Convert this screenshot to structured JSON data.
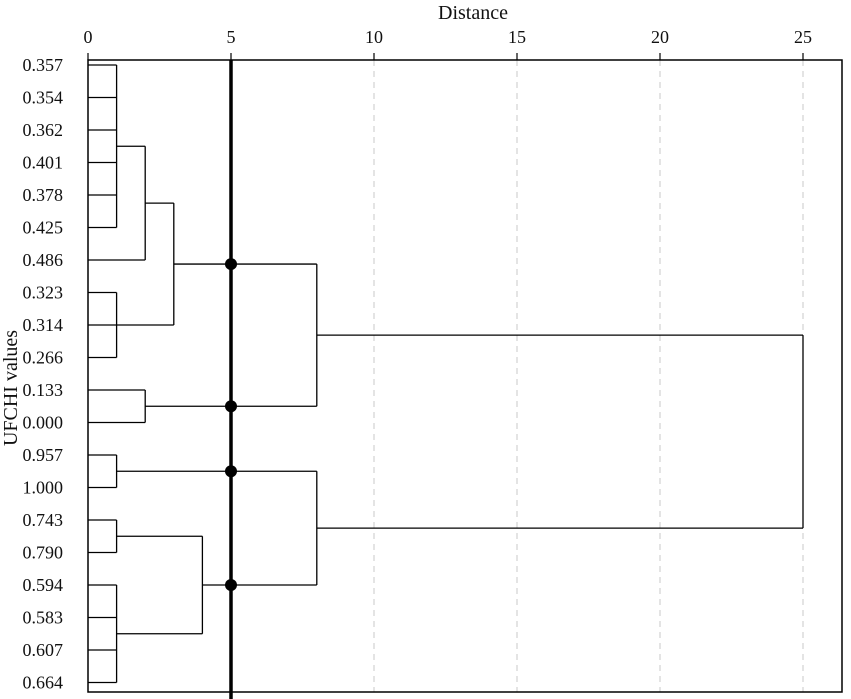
{
  "chart_data": {
    "type": "dendrogram",
    "title": "",
    "xlabel": "Distance",
    "ylabel": "UFCHI values",
    "xlim": [
      0,
      25
    ],
    "x_ticks": [
      0,
      5,
      10,
      15,
      20,
      25
    ],
    "x_tick_labels": [
      "0",
      "5",
      "10",
      "15",
      "20",
      "25"
    ],
    "x_axis_position": "top",
    "vertical_gridlines": "dashed",
    "leaves": [
      "0.357",
      "0.354",
      "0.362",
      "0.401",
      "0.378",
      "0.425",
      "0.486",
      "0.323",
      "0.314",
      "0.266",
      "0.133",
      "0.000",
      "0.957",
      "1.000",
      "0.743",
      "0.790",
      "0.594",
      "0.583",
      "0.607",
      "0.664"
    ],
    "merges": [
      {
        "members": [
          0,
          1,
          2,
          3,
          4,
          5
        ],
        "distance": 1
      },
      {
        "members": [
          7,
          8,
          9
        ],
        "distance": 1
      },
      {
        "members": [
          12,
          13
        ],
        "distance": 1
      },
      {
        "members": [
          14,
          15
        ],
        "distance": 1
      },
      {
        "members": [
          16,
          17,
          18,
          19
        ],
        "distance": 1
      },
      {
        "members": [
          "c0",
          6
        ],
        "distance": 2
      },
      {
        "members": [
          10,
          11
        ],
        "distance": 2
      },
      {
        "members": [
          "c5",
          "c1"
        ],
        "distance": 3
      },
      {
        "members": [
          "c3",
          "c4"
        ],
        "distance": 4
      },
      {
        "members": [
          "c7",
          "c6"
        ],
        "distance": 8
      },
      {
        "members": [
          "c2",
          "c8"
        ],
        "distance": 8
      },
      {
        "members": [
          "c9",
          "c10"
        ],
        "distance": 25
      }
    ],
    "cut_line": 5
  }
}
